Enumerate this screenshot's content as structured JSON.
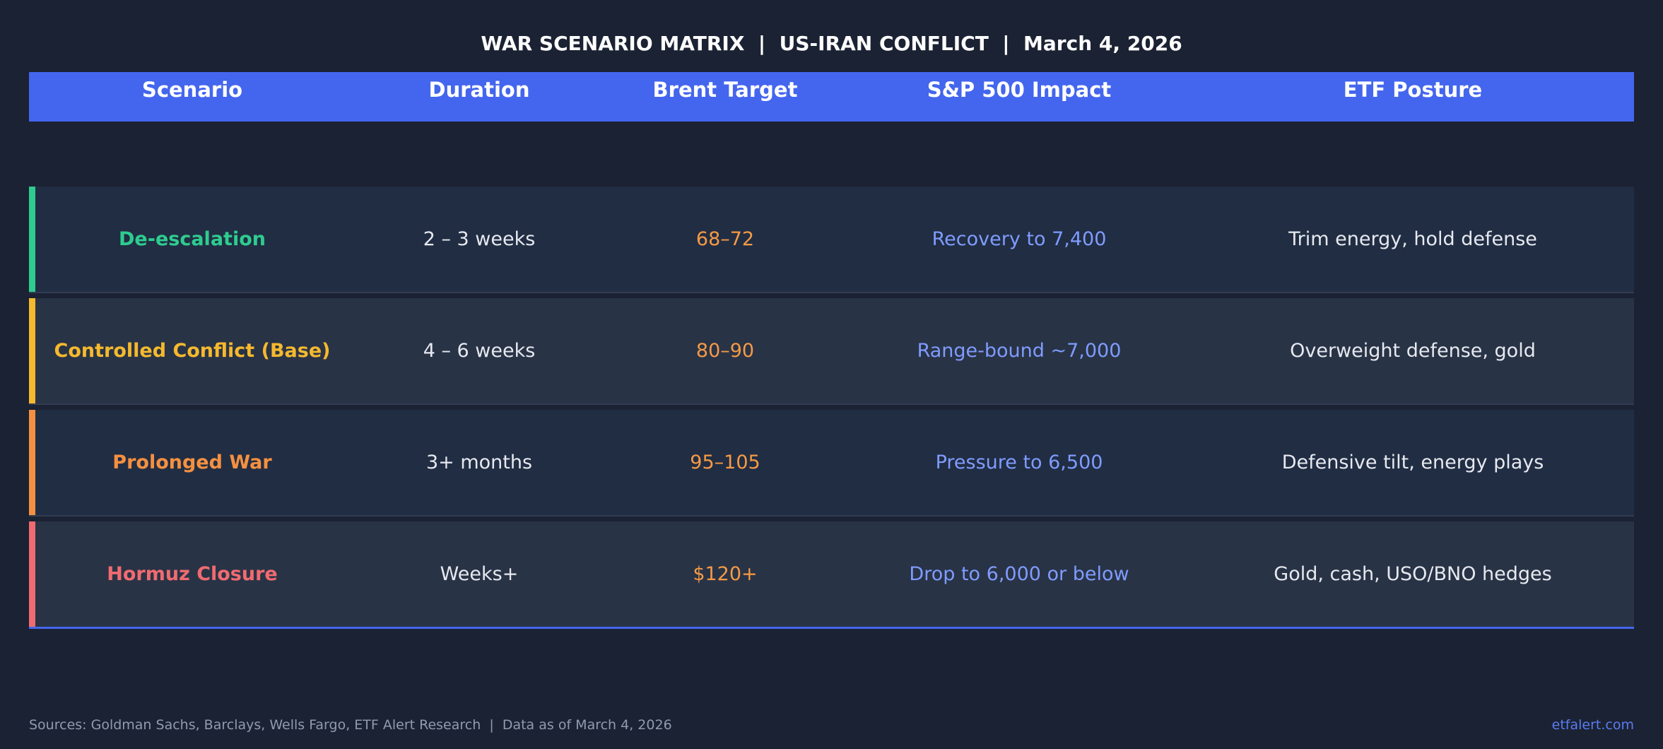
{
  "title": "WAR SCENARIO MATRIX  |  US-IRAN CONFLICT  |  March 4, 2026",
  "chart_data": {
    "type": "table",
    "columns": [
      "Scenario",
      "Duration",
      "Brent Target",
      "S&P 500 Impact",
      "ETF Posture"
    ],
    "rows": [
      {
        "scenario": "De-escalation",
        "duration": "2 – 3 weeks",
        "brent": "68–72",
        "sp500": "Recovery to 7,400",
        "etf": "Trim energy, hold defense",
        "color": "#2ecc8f"
      },
      {
        "scenario": "Controlled Conflict (Base)",
        "duration": "4 – 6 weeks",
        "brent": "80–90",
        "sp500": "Range-bound ~7,000",
        "etf": "Overweight defense, gold",
        "color": "#f5b92e"
      },
      {
        "scenario": "Prolonged War",
        "duration": "3+ months",
        "brent": "95–105",
        "sp500": "Pressure to 6,500",
        "etf": "Defensive tilt, energy plays",
        "color": "#f59040"
      },
      {
        "scenario": "Hormuz Closure",
        "duration": "Weeks+",
        "brent": "$120+",
        "sp500": "Drop to 6,000 or below",
        "etf": "Gold, cash, USO/BNO hedges",
        "color": "#f06b70"
      }
    ]
  },
  "colors": {
    "background": "#1b2233",
    "header": "#4466ee",
    "brent": "#f59a45",
    "sp500": "#7f9cff"
  },
  "footer": {
    "sources": "Sources: Goldman Sachs, Barclays, Wells Fargo, ETF Alert Research  |  Data as of March 4, 2026",
    "site": "etfalert.com"
  }
}
